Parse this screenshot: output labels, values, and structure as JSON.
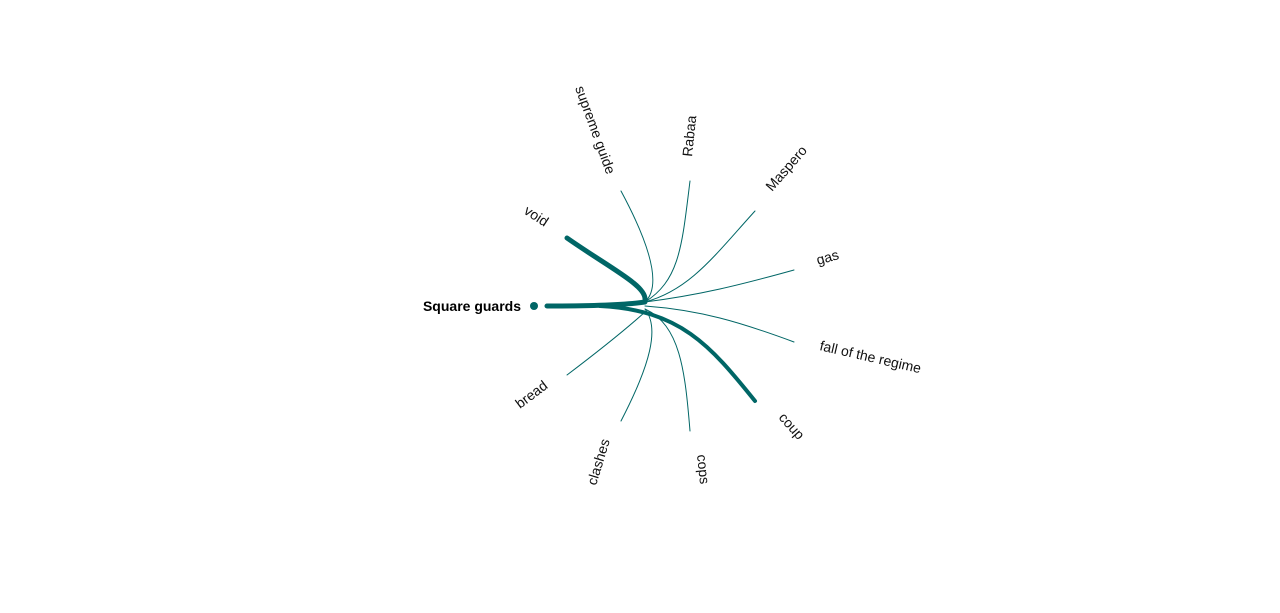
{
  "diagram": {
    "center": {
      "label": "Square guards"
    },
    "edge_color": "#006666",
    "nodes": [
      {
        "label": "supreme guide",
        "weight": "thin"
      },
      {
        "label": "Rabaa",
        "weight": "thin"
      },
      {
        "label": "Maspero",
        "weight": "thin"
      },
      {
        "label": "gas",
        "weight": "thin"
      },
      {
        "label": "fall of the regime",
        "weight": "thin"
      },
      {
        "label": "coup",
        "weight": "thick"
      },
      {
        "label": "cops",
        "weight": "thin"
      },
      {
        "label": "clashes",
        "weight": "thin"
      },
      {
        "label": "bread",
        "weight": "thin"
      },
      {
        "label": "void",
        "weight": "thick"
      }
    ]
  }
}
